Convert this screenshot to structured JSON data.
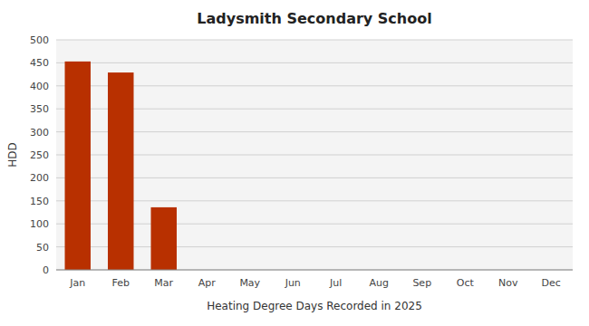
{
  "chart_data": {
    "type": "bar",
    "title": "Ladysmith Secondary School",
    "xlabel": "Heating Degree Days Recorded in 2025",
    "ylabel": "HDD",
    "categories": [
      "Jan",
      "Feb",
      "Mar",
      "Apr",
      "May",
      "Jun",
      "Jul",
      "Aug",
      "Sep",
      "Oct",
      "Nov",
      "Dec"
    ],
    "values": [
      453,
      429,
      136,
      0,
      0,
      0,
      0,
      0,
      0,
      0,
      0,
      0
    ],
    "color": "#b83000",
    "ylim": [
      0,
      500
    ],
    "yticks": [
      0,
      50,
      100,
      150,
      200,
      250,
      300,
      350,
      400,
      450,
      500
    ],
    "grid": true
  }
}
